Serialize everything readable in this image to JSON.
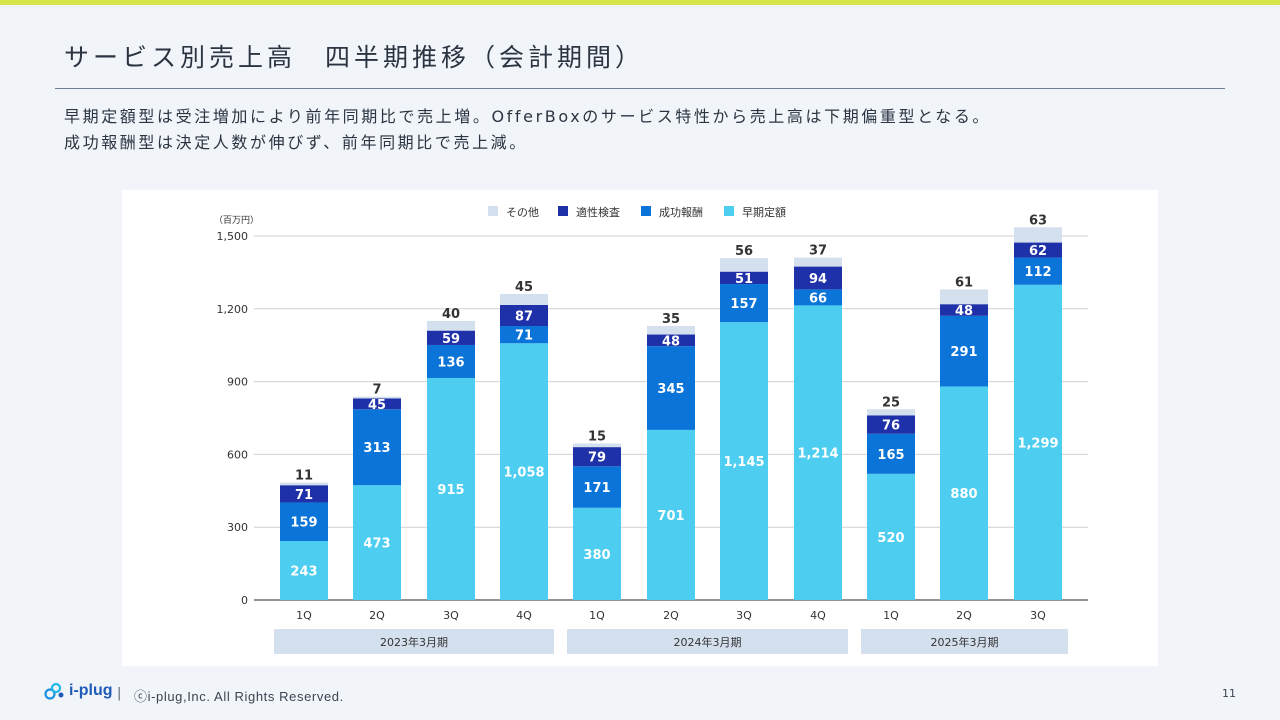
{
  "slide": {
    "title": "サービス別売上高　四半期推移（会計期間）",
    "description_line1": "早期定額型は受注増加により前年同期比で売上増。OfferBoxのサービス特性から売上高は下期偏重型となる。",
    "description_line2": "成功報酬型は決定人数が伸びず、前年同期比で売上減。",
    "footer_logo_text": "i-plug",
    "footer_separator": "|",
    "copyright": "ⓒi-plug,Inc. All Rights Reserved.",
    "page_number": "11"
  },
  "colors": {
    "accent_bar": "#d6e64a",
    "その他": "#d5e0ef",
    "適性検査": "#1f31a8",
    "成功報酬": "#0a74d8",
    "早期定額": "#4dcef0"
  },
  "chart_data": {
    "type": "bar",
    "stacked": true,
    "unit_label": "（百万円）",
    "ylim": [
      0,
      1500
    ],
    "yticks": [
      0,
      300,
      600,
      900,
      1200,
      1500
    ],
    "ytick_labels": [
      "0",
      "300",
      "600",
      "900",
      "1,200",
      "1,500"
    ],
    "grid": true,
    "legend_position": "top-center",
    "categories": [
      "1Q",
      "2Q",
      "3Q",
      "4Q",
      "1Q",
      "2Q",
      "3Q",
      "4Q",
      "1Q",
      "2Q",
      "3Q"
    ],
    "groups": [
      {
        "label": "2023年3月期",
        "start": 0,
        "end": 3
      },
      {
        "label": "2024年3月期",
        "start": 4,
        "end": 7
      },
      {
        "label": "2025年3月期",
        "start": 8,
        "end": 10
      }
    ],
    "series": [
      {
        "name": "早期定額",
        "values": [
          243,
          473,
          915,
          1058,
          380,
          701,
          1145,
          1214,
          520,
          880,
          1299
        ],
        "labels": [
          "243",
          "473",
          "915",
          "1,058",
          "380",
          "701",
          "1,145",
          "1,214",
          "520",
          "880",
          "1,299"
        ]
      },
      {
        "name": "成功報酬",
        "values": [
          159,
          313,
          136,
          71,
          171,
          345,
          157,
          66,
          165,
          291,
          112
        ],
        "labels": [
          "159",
          "313",
          "136",
          "71",
          "171",
          "345",
          "157",
          "66",
          "165",
          "291",
          "112"
        ]
      },
      {
        "name": "適性検査",
        "values": [
          71,
          45,
          59,
          87,
          79,
          48,
          51,
          94,
          76,
          48,
          62
        ],
        "labels": [
          "71",
          "45",
          "59",
          "87",
          "79",
          "48",
          "51",
          "94",
          "76",
          "48",
          "62"
        ]
      },
      {
        "name": "その他",
        "values": [
          11,
          7,
          40,
          45,
          15,
          35,
          56,
          37,
          25,
          61,
          63
        ],
        "labels": [
          "11",
          "7",
          "40",
          "45",
          "15",
          "35",
          "56",
          "37",
          "25",
          "61",
          "63"
        ]
      }
    ],
    "legend_order": [
      "その他",
      "適性検査",
      "成功報酬",
      "早期定額"
    ]
  }
}
